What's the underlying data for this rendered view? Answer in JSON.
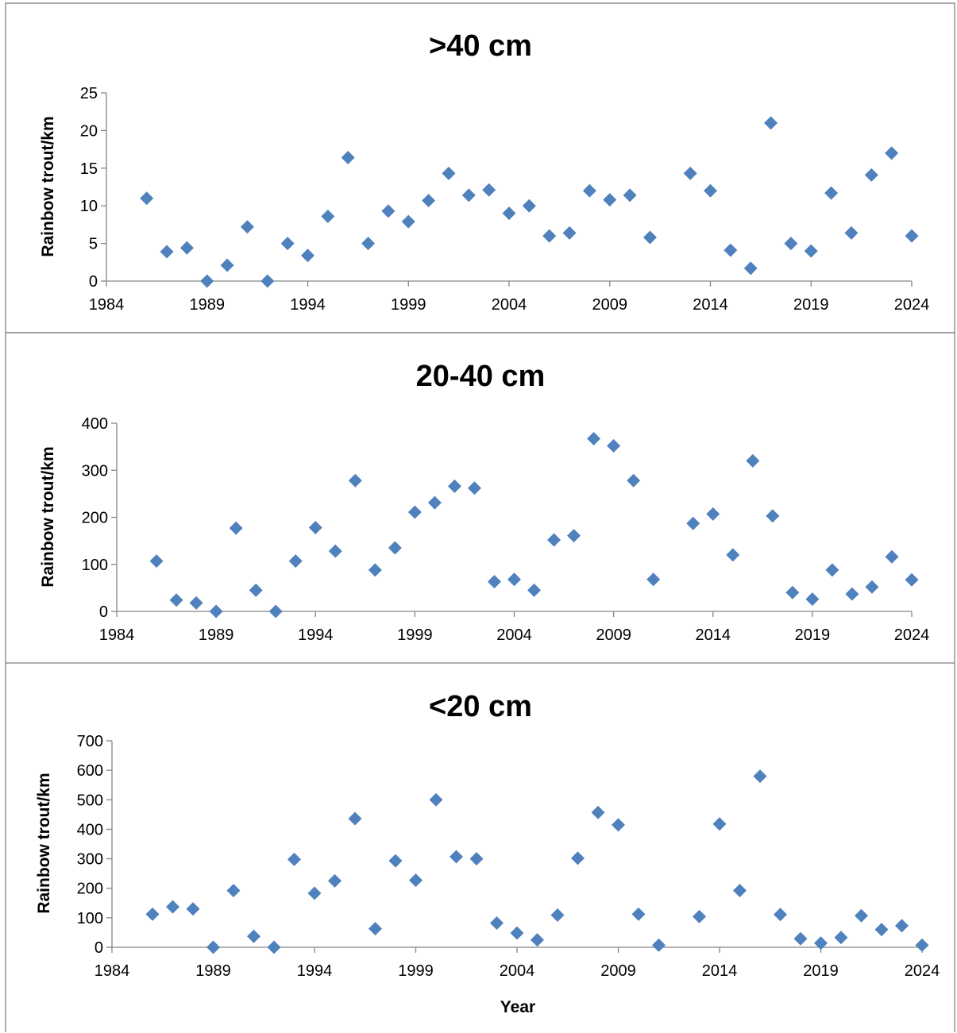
{
  "chart_data": [
    {
      "type": "scatter",
      "title": ">40 cm",
      "xlabel": "",
      "ylabel": "Rainbow trout/km",
      "xlim": [
        1984,
        2024
      ],
      "ylim": [
        0,
        25
      ],
      "x_ticks": [
        1984,
        1989,
        1994,
        1999,
        2004,
        2009,
        2014,
        2019,
        2024
      ],
      "y_ticks": [
        0,
        5,
        10,
        15,
        20,
        25
      ],
      "grid": false,
      "legend": "none",
      "marker": "diamond",
      "color": "#4f81bd",
      "points": [
        {
          "x": 1986,
          "y": 11
        },
        {
          "x": 1987,
          "y": 3.9
        },
        {
          "x": 1988,
          "y": 4.4
        },
        {
          "x": 1989,
          "y": 0
        },
        {
          "x": 1990,
          "y": 2.1
        },
        {
          "x": 1991,
          "y": 7.2
        },
        {
          "x": 1992,
          "y": 0
        },
        {
          "x": 1993,
          "y": 5
        },
        {
          "x": 1994,
          "y": 3.4
        },
        {
          "x": 1995,
          "y": 8.6
        },
        {
          "x": 1996,
          "y": 16.4
        },
        {
          "x": 1997,
          "y": 5
        },
        {
          "x": 1998,
          "y": 9.3
        },
        {
          "x": 1999,
          "y": 7.9
        },
        {
          "x": 2000,
          "y": 10.7
        },
        {
          "x": 2001,
          "y": 14.3
        },
        {
          "x": 2002,
          "y": 11.4
        },
        {
          "x": 2003,
          "y": 12.1
        },
        {
          "x": 2004,
          "y": 9
        },
        {
          "x": 2005,
          "y": 10
        },
        {
          "x": 2006,
          "y": 6
        },
        {
          "x": 2007,
          "y": 6.4
        },
        {
          "x": 2008,
          "y": 12
        },
        {
          "x": 2009,
          "y": 10.8
        },
        {
          "x": 2010,
          "y": 11.4
        },
        {
          "x": 2011,
          "y": 5.8
        },
        {
          "x": 2013,
          "y": 14.3
        },
        {
          "x": 2014,
          "y": 12
        },
        {
          "x": 2015,
          "y": 4.1
        },
        {
          "x": 2016,
          "y": 1.7
        },
        {
          "x": 2017,
          "y": 21
        },
        {
          "x": 2018,
          "y": 5
        },
        {
          "x": 2019,
          "y": 4
        },
        {
          "x": 2020,
          "y": 11.7
        },
        {
          "x": 2021,
          "y": 6.4
        },
        {
          "x": 2022,
          "y": 14.1
        },
        {
          "x": 2023,
          "y": 17
        },
        {
          "x": 2024,
          "y": 6
        }
      ]
    },
    {
      "type": "scatter",
      "title": "20-40 cm",
      "xlabel": "",
      "ylabel": "Rainbow trout/km",
      "xlim": [
        1984,
        2024
      ],
      "ylim": [
        0,
        400
      ],
      "x_ticks": [
        1984,
        1989,
        1994,
        1999,
        2004,
        2009,
        2014,
        2019,
        2024
      ],
      "y_ticks": [
        0,
        100,
        200,
        300,
        400
      ],
      "grid": false,
      "legend": "none",
      "marker": "diamond",
      "color": "#4f81bd",
      "points": [
        {
          "x": 1986,
          "y": 107
        },
        {
          "x": 1987,
          "y": 24
        },
        {
          "x": 1988,
          "y": 18
        },
        {
          "x": 1989,
          "y": 0
        },
        {
          "x": 1990,
          "y": 177
        },
        {
          "x": 1991,
          "y": 45
        },
        {
          "x": 1992,
          "y": 0
        },
        {
          "x": 1993,
          "y": 107
        },
        {
          "x": 1994,
          "y": 178
        },
        {
          "x": 1995,
          "y": 128
        },
        {
          "x": 1996,
          "y": 278
        },
        {
          "x": 1997,
          "y": 88
        },
        {
          "x": 1998,
          "y": 135
        },
        {
          "x": 1999,
          "y": 211
        },
        {
          "x": 2000,
          "y": 231
        },
        {
          "x": 2001,
          "y": 266
        },
        {
          "x": 2002,
          "y": 262
        },
        {
          "x": 2003,
          "y": 63
        },
        {
          "x": 2004,
          "y": 68
        },
        {
          "x": 2005,
          "y": 45
        },
        {
          "x": 2006,
          "y": 152
        },
        {
          "x": 2007,
          "y": 161
        },
        {
          "x": 2008,
          "y": 367
        },
        {
          "x": 2009,
          "y": 352
        },
        {
          "x": 2010,
          "y": 278
        },
        {
          "x": 2011,
          "y": 68
        },
        {
          "x": 2013,
          "y": 187
        },
        {
          "x": 2014,
          "y": 207
        },
        {
          "x": 2015,
          "y": 120
        },
        {
          "x": 2016,
          "y": 320
        },
        {
          "x": 2017,
          "y": 203
        },
        {
          "x": 2018,
          "y": 40
        },
        {
          "x": 2019,
          "y": 26
        },
        {
          "x": 2020,
          "y": 88
        },
        {
          "x": 2021,
          "y": 37
        },
        {
          "x": 2022,
          "y": 52
        },
        {
          "x": 2023,
          "y": 116
        },
        {
          "x": 2024,
          "y": 67
        }
      ]
    },
    {
      "type": "scatter",
      "title": "<20 cm",
      "xlabel": "Year",
      "ylabel": "Rainbow trout/km",
      "xlim": [
        1984,
        2024
      ],
      "ylim": [
        0,
        700
      ],
      "x_ticks": [
        1984,
        1989,
        1994,
        1999,
        2004,
        2009,
        2014,
        2019,
        2024
      ],
      "y_ticks": [
        0,
        100,
        200,
        300,
        400,
        500,
        600,
        700
      ],
      "grid": false,
      "legend": "none",
      "marker": "diamond",
      "color": "#4f81bd",
      "points": [
        {
          "x": 1986,
          "y": 112
        },
        {
          "x": 1987,
          "y": 137
        },
        {
          "x": 1988,
          "y": 130
        },
        {
          "x": 1989,
          "y": 0
        },
        {
          "x": 1990,
          "y": 192
        },
        {
          "x": 1991,
          "y": 37
        },
        {
          "x": 1992,
          "y": 0
        },
        {
          "x": 1993,
          "y": 298
        },
        {
          "x": 1994,
          "y": 183
        },
        {
          "x": 1995,
          "y": 225
        },
        {
          "x": 1996,
          "y": 436
        },
        {
          "x": 1997,
          "y": 63
        },
        {
          "x": 1998,
          "y": 293
        },
        {
          "x": 1999,
          "y": 227
        },
        {
          "x": 2000,
          "y": 500
        },
        {
          "x": 2001,
          "y": 307
        },
        {
          "x": 2002,
          "y": 300
        },
        {
          "x": 2003,
          "y": 82
        },
        {
          "x": 2004,
          "y": 48
        },
        {
          "x": 2005,
          "y": 25
        },
        {
          "x": 2006,
          "y": 109
        },
        {
          "x": 2007,
          "y": 302
        },
        {
          "x": 2008,
          "y": 457
        },
        {
          "x": 2009,
          "y": 415
        },
        {
          "x": 2010,
          "y": 112
        },
        {
          "x": 2011,
          "y": 7
        },
        {
          "x": 2013,
          "y": 104
        },
        {
          "x": 2014,
          "y": 418
        },
        {
          "x": 2015,
          "y": 192
        },
        {
          "x": 2016,
          "y": 580
        },
        {
          "x": 2017,
          "y": 111
        },
        {
          "x": 2018,
          "y": 29
        },
        {
          "x": 2019,
          "y": 14
        },
        {
          "x": 2020,
          "y": 33
        },
        {
          "x": 2021,
          "y": 107
        },
        {
          "x": 2022,
          "y": 60
        },
        {
          "x": 2023,
          "y": 73
        },
        {
          "x": 2024,
          "y": 7
        }
      ]
    }
  ]
}
